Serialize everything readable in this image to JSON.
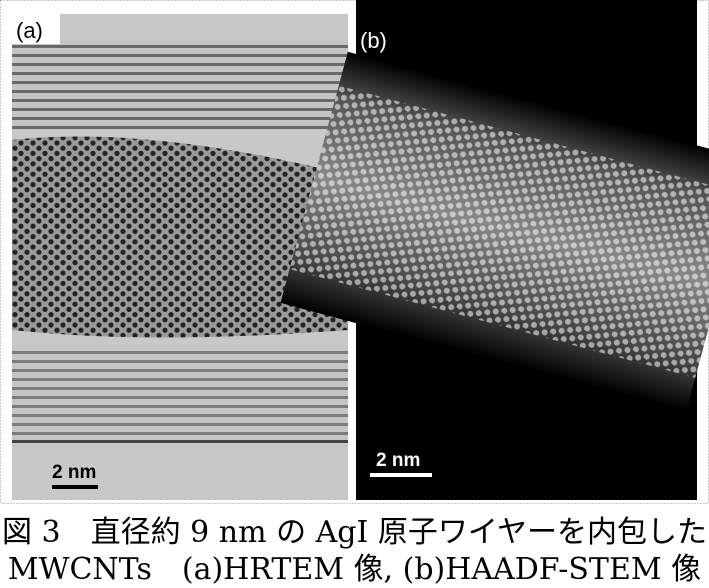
{
  "figure": {
    "panels": [
      {
        "label": "(a)",
        "scale_bar": "2 nm"
      },
      {
        "label": "(b)",
        "scale_bar": "2 nm"
      }
    ],
    "caption": [
      "図 3　直径約 9 nm の AgI 原子ワイヤーを内包した",
      "MWCNTs　(a)HRTEM 像, (b)HAADF-STEM 像"
    ]
  }
}
